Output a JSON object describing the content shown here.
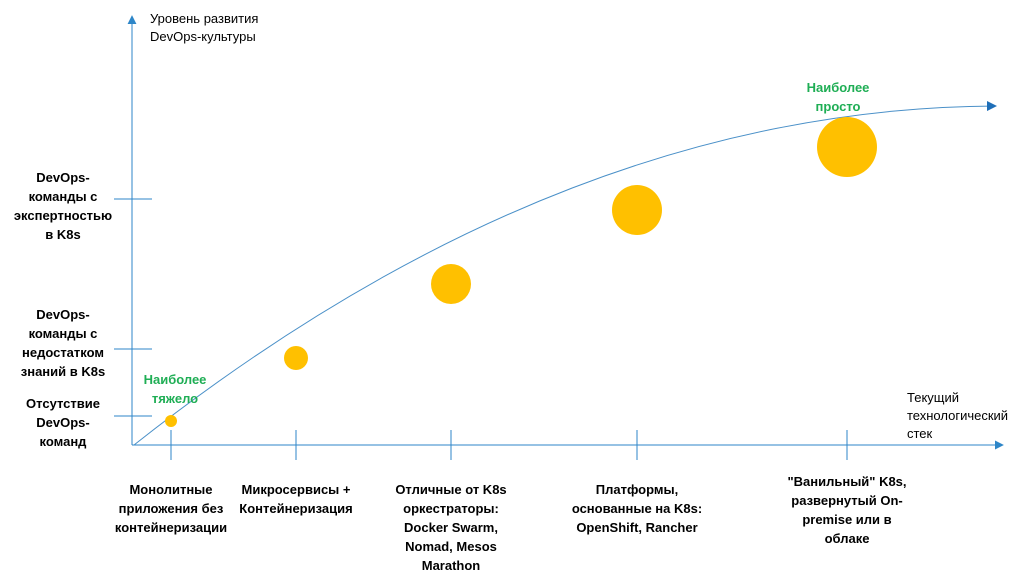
{
  "chart_data": {
    "type": "scatter",
    "x_title": [
      "Текущий",
      "технологический",
      "стек"
    ],
    "y_title": [
      "Уровень развития",
      "DevOps-культуры"
    ],
    "y_tick_labels": [
      [
        "DevOps-",
        "команды с",
        "экспертностью",
        "в K8s"
      ],
      [
        "DevOps-",
        "команды с",
        "недостатком",
        "знаний в K8s"
      ],
      [
        "Отсутствие",
        "DevOps-",
        "команд"
      ]
    ],
    "x_tick_labels": [
      [
        "Монолитные",
        "приложения без",
        "контейнеризации"
      ],
      [
        "Микросервисы +",
        "Контейнеризация"
      ],
      [
        "Отличные от K8s",
        "оркестраторы:",
        "Docker Swarm,",
        "Nomad, Mesos",
        "Marathon"
      ],
      [
        "Платформы,",
        "основанные на K8s:",
        "OpenShift, Rancher"
      ],
      [
        "\"Ванильный\" K8s,",
        "развернутый On-",
        "premise или в",
        "облаке"
      ]
    ],
    "points": [
      {
        "x": 1,
        "y": 1,
        "size": 1
      },
      {
        "x": 2,
        "y": 2,
        "size": 2
      },
      {
        "x": 3,
        "y": 3,
        "size": 3
      },
      {
        "x": 4,
        "y": 4,
        "size": 4
      },
      {
        "x": 5,
        "y": 5,
        "size": 5
      }
    ],
    "annotations": [
      {
        "text": [
          "Наиболее",
          "тяжело"
        ],
        "near_point": 1
      },
      {
        "text": [
          "Наиболее",
          "просто"
        ],
        "near_point": 5
      }
    ],
    "colors": {
      "axis": "#2e86c8",
      "trend": "#4a90c8",
      "bubble": "#ffc000",
      "annotation": "#1fae55"
    },
    "grid": false,
    "legend": "none"
  }
}
